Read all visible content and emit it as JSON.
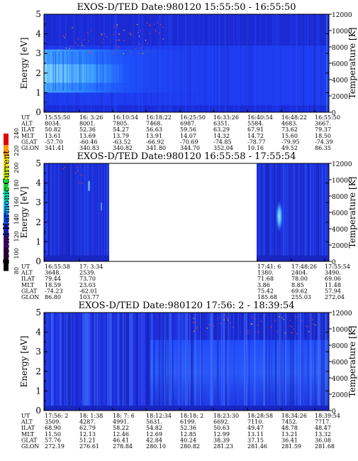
{
  "panels": [
    {
      "title": "EXOS-D/TED   Date:980120   15:55:50 - 16:55:50",
      "ylabel": "Energy [eV]",
      "y2label": "Temperature [K]",
      "yticks": [
        "0",
        "1",
        "2",
        "3",
        "4",
        "5"
      ],
      "y2ticks": [
        "0",
        "2000",
        "4000",
        "6000",
        "8000",
        "10000",
        "12000"
      ],
      "ephemeris": {
        "labels": [
          "UT",
          "ALT",
          "ILAT",
          "MLT",
          "GLAT",
          "GLON"
        ],
        "columns": [
          [
            "15:55:50",
            "8034.",
            "50.82",
            "13.61",
            "-57.70",
            "341.41"
          ],
          [
            "16: 3:26",
            "8001.",
            "52.36",
            "13.69",
            "-60.46",
            "340.83"
          ],
          [
            "16:10:54",
            "7805.",
            "54.27",
            "13.79",
            "-63.52",
            "340.82"
          ],
          [
            "16:18:22",
            "7468.",
            "56.63",
            "13.91",
            "-66.92",
            "341.80"
          ],
          [
            "16:25:50",
            "6987.",
            "59.56",
            "14.07",
            "-70.69",
            "344.70"
          ],
          [
            "16:33:26",
            "6351.",
            "63.29",
            "14.32",
            "-74.85",
            "352.04"
          ],
          [
            "16:40:54",
            "5584.",
            "67.91",
            "14.72",
            "-78.77",
            "10.16"
          ],
          [
            "16:48:22",
            "4683.",
            "73.62",
            "15.60",
            "-79.95",
            "49.52"
          ],
          [
            "16:55:50",
            "3667.",
            "79.37",
            "18.50",
            "-74.39",
            "86.35"
          ]
        ]
      }
    },
    {
      "title": "EXOS-D/TED   Date:980120   16:55:58 - 17:55:54",
      "ylabel": "Energy [eV]",
      "y2label": "Temperature [K]",
      "yticks": [
        "0",
        "1",
        "2",
        "3",
        "4",
        "5"
      ],
      "y2ticks": [
        "0",
        "2000",
        "4000",
        "6000",
        "8000",
        "10000",
        "12000"
      ],
      "ephemeris": {
        "labels": [
          "UT",
          "ALT",
          "ILAT",
          "MLT",
          "GLAT",
          "GLON"
        ],
        "columns": [
          [
            "16:55:58",
            "3648.",
            "79.44",
            "18.59",
            "-74.23",
            "86.80"
          ],
          [
            "17: 3:34",
            "2539.",
            "73.70",
            "23.03",
            "-62.01",
            "103.77"
          ],
          [
            "17:41: 6",
            "1380.",
            "71.68",
            "3.86",
            "75.42",
            "185.68"
          ],
          [
            "17:48:26",
            "2404.",
            "78.00",
            "8.85",
            "69.62",
            "255.03"
          ],
          [
            "17:55:54",
            "3490.",
            "69.06",
            "11.48",
            "57.94",
            "272.04"
          ]
        ]
      }
    },
    {
      "title": "EXOS-D/TED   Date:980120   17:56: 2 - 18:39:54",
      "ylabel": "Energy [eV]",
      "y2label": "Temperature [K]",
      "yticks": [
        "0",
        "1",
        "2",
        "3",
        "4",
        "5"
      ],
      "y2ticks": [
        "0",
        "2000",
        "4000",
        "6000",
        "8000",
        "10000",
        "12000"
      ],
      "ephemeris": {
        "labels": [
          "UT",
          "ALT",
          "ILAT",
          "MLT",
          "GLAT",
          "GLON"
        ],
        "columns": [
          [
            "17:56: 2",
            "3509.",
            "68.90",
            "11.50",
            "57.76",
            "272.19"
          ],
          [
            "18: 1:38",
            "4287.",
            "62.79",
            "12.13",
            "51.21",
            "276.61"
          ],
          [
            "18: 7: 6",
            "4991.",
            "58.22",
            "12.46",
            "46.41",
            "278.84"
          ],
          [
            "18:12:34",
            "5631.",
            "54.82",
            "12.69",
            "42.84",
            "280.10"
          ],
          [
            "18:18: 2",
            "6199.",
            "52.36",
            "12.85",
            "40.24",
            "280.82"
          ],
          [
            "18:23:30",
            "6692.",
            "50.63",
            "12.99",
            "38.39",
            "281.23"
          ],
          [
            "18:28:58",
            "7110.",
            "49.47",
            "13.11",
            "37.15",
            "281.46"
          ],
          [
            "18:34:26",
            "7452.",
            "48.78",
            "13.21",
            "36.41",
            "281.59"
          ],
          [
            "18:39:54",
            "7717.",
            "48.47",
            "13.32",
            "36.08",
            "281.68"
          ]
        ]
      }
    }
  ],
  "colorbar": {
    "label": "Second Harmonic Current",
    "ticks": [
      "80",
      "100",
      "120",
      "140",
      "160",
      "180",
      "200",
      "220",
      "240"
    ],
    "colors": [
      "#000000",
      "#3a0045",
      "#4b0082",
      "#1a1aa8",
      "#1450ff",
      "#14b4ff",
      "#00e8c0",
      "#16d03a",
      "#bfe800",
      "#ffee00",
      "#ff9a00",
      "#e00000"
    ]
  },
  "chart_data": [
    {
      "type": "heatmap",
      "title": "EXOS-D/TED   Date:980120   15:55:50 - 16:55:50",
      "xlabel": "UT",
      "ylabel": "Energy [eV]",
      "y2label": "Temperature [K]",
      "ylim": [
        0,
        5
      ],
      "y2lim": [
        0,
        12000
      ],
      "x_ticks": [
        "15:55:50",
        "16: 3:26",
        "16:10:54",
        "16:18:22",
        "16:25:50",
        "16:33:26",
        "16:40:54",
        "16:48:22",
        "16:55:50"
      ],
      "features": [
        {
          "x_range": [
            "15:55:50",
            "16:10:54"
          ],
          "energy_range": [
            1.0,
            3.2
          ],
          "level": 150
        },
        {
          "x_range": [
            "16:10:54",
            "16:25:50"
          ],
          "energy_range": [
            1.0,
            2.4
          ],
          "level": 140
        },
        {
          "x_range": [
            "15:55:50",
            "16:55:50"
          ],
          "energy_range": [
            0.0,
            5.0
          ],
          "level": 120
        }
      ],
      "colorbar_range": [
        80,
        240
      ]
    },
    {
      "type": "heatmap",
      "title": "EXOS-D/TED   Date:980120   16:55:58 - 17:55:54",
      "xlabel": "UT",
      "ylabel": "Energy [eV]",
      "y2label": "Temperature [K]",
      "ylim": [
        0,
        5
      ],
      "y2lim": [
        0,
        12000
      ],
      "x_ticks": [
        "16:55:58",
        "17: 3:34",
        "17:41: 6",
        "17:48:26",
        "17:55:54"
      ],
      "data_gap": [
        "17: 3:34",
        "17:41: 6"
      ],
      "features": [
        {
          "x": "17:48:26",
          "energy_range": [
            1.5,
            3.0
          ],
          "level": 160
        }
      ],
      "colorbar_range": [
        80,
        240
      ]
    },
    {
      "type": "heatmap",
      "title": "EXOS-D/TED   Date:980120   17:56: 2 - 18:39:54",
      "xlabel": "UT",
      "ylabel": "Energy [eV]",
      "y2label": "Temperature [K]",
      "ylim": [
        0,
        5
      ],
      "y2lim": [
        0,
        12000
      ],
      "x_ticks": [
        "17:56: 2",
        "18: 1:38",
        "18: 7: 6",
        "18:12:34",
        "18:18: 2",
        "18:23:30",
        "18:28:58",
        "18:34:26",
        "18:39:54"
      ],
      "features": [
        {
          "x_range": [
            "17:56: 2",
            "18:39:54"
          ],
          "energy_range": [
            0.0,
            3.6
          ],
          "level": 125
        }
      ],
      "colorbar_range": [
        80,
        240
      ]
    }
  ]
}
